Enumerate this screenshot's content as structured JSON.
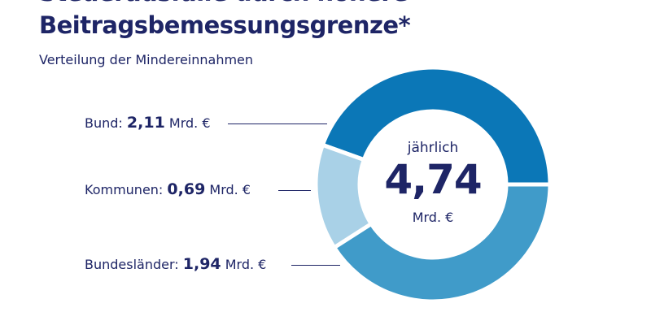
{
  "chart_data": {
    "type": "pie",
    "title_line1": "Steuerausfälle durch höhere",
    "title_line2": "Beitragsbemessungsgrenze*",
    "subtitle": "Verteilung der Mindereinnahmen",
    "unit": "Mrd. €",
    "total_label": "jährlich",
    "total_value": "4,74",
    "slices": [
      {
        "name": "Bund",
        "value": 2.11,
        "display": "2,11",
        "color": "#0b77b7"
      },
      {
        "name": "Kommunen",
        "value": 0.69,
        "display": "0,69",
        "color": "#a9d1e7"
      },
      {
        "name": "Bundesländer",
        "value": 1.94,
        "display": "1,94",
        "color": "#409bc9"
      }
    ]
  }
}
